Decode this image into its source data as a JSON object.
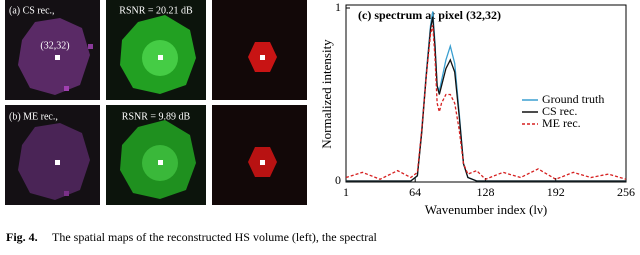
{
  "panels": {
    "row_labels": [
      "(a) CS rec.,",
      "(b) ME rec.,"
    ],
    "rsnr": [
      "RSNR = 20.21 dB",
      "RSNR = 9.89 dB"
    ],
    "pixel_label": "(32,32)"
  },
  "chart_data": {
    "type": "line",
    "title": "(c) spectrum at pixel (32,32)",
    "x_label": "Wavenumber index (lν)",
    "y_label": "Normalized intensity",
    "x": [
      1,
      16,
      32,
      48,
      60,
      66,
      70,
      74,
      78,
      80,
      82,
      84,
      86,
      88,
      92,
      96,
      100,
      104,
      108,
      112,
      120,
      128,
      144,
      160,
      176,
      192,
      208,
      224,
      240,
      256
    ],
    "series": [
      {
        "name": "Ground truth",
        "color": "#3a9fd0",
        "values": [
          0,
          0,
          0,
          0,
          0,
          0.03,
          0.3,
          0.62,
          0.9,
          0.98,
          0.8,
          0.55,
          0.52,
          0.58,
          0.7,
          0.78,
          0.68,
          0.4,
          0.1,
          0.02,
          0,
          0,
          0,
          0,
          0,
          0,
          0,
          0,
          0,
          0
        ]
      },
      {
        "name": "CS rec.",
        "color": "#111111",
        "values": [
          0,
          0,
          0,
          0,
          0,
          0.03,
          0.28,
          0.6,
          0.88,
          0.95,
          0.78,
          0.55,
          0.5,
          0.55,
          0.65,
          0.7,
          0.63,
          0.38,
          0.1,
          0.02,
          0,
          0,
          0,
          0,
          0,
          0,
          0,
          0,
          0,
          0
        ]
      },
      {
        "name": "ME rec.",
        "color": "#d62020",
        "dash": true,
        "values": [
          0.02,
          0.05,
          0.01,
          0.06,
          0.02,
          0.05,
          0.3,
          0.6,
          0.85,
          0.9,
          0.72,
          0.45,
          0.4,
          0.45,
          0.5,
          0.5,
          0.45,
          0.3,
          0.1,
          0.04,
          0.06,
          0.01,
          0.05,
          0.02,
          0.07,
          0.01,
          0.05,
          0.02,
          0.04,
          0.01
        ]
      }
    ],
    "xlim": [
      1,
      256
    ],
    "xticks": [
      1,
      64,
      128,
      192,
      256
    ],
    "ylim": [
      0,
      1
    ],
    "yticks": [
      0,
      1
    ],
    "legend": "center right"
  },
  "caption": {
    "label": "Fig. 4.",
    "text": "The spatial maps of the reconstructed HS volume (left), the spectral"
  }
}
